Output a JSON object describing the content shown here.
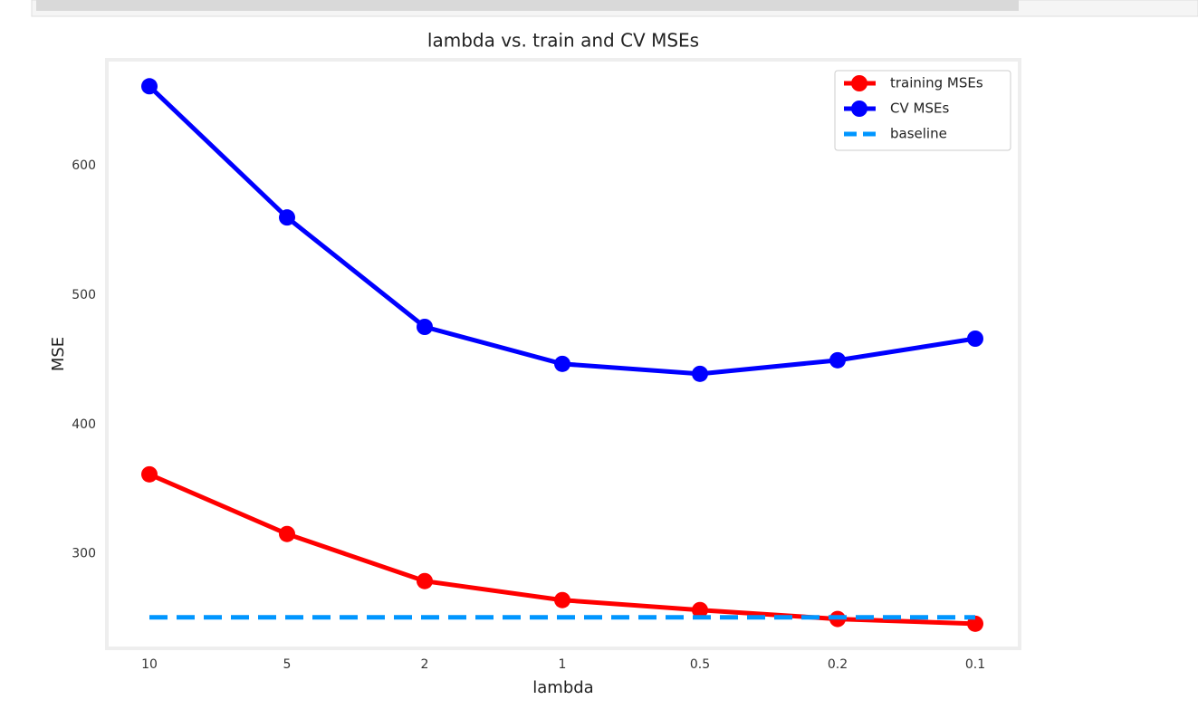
{
  "chart_data": {
    "type": "line",
    "title": "lambda vs. train and CV MSEs",
    "x_label": "lambda",
    "y_label": "MSE",
    "categories": [
      "10",
      "5",
      "2",
      "1",
      "0.5",
      "0.2",
      "0.1"
    ],
    "series": [
      {
        "name": "training MSEs",
        "color": "#ff0000",
        "marker": true,
        "dashed": false,
        "values": [
          361.5,
          315.4,
          279,
          264.3,
          256.6,
          249.7,
          246
        ]
      },
      {
        "name": "CV MSEs",
        "color": "#0000ff",
        "marker": true,
        "dashed": false,
        "values": [
          661.5,
          560.1,
          475.5,
          446.9,
          439.2,
          449.7,
          466.4
        ]
      },
      {
        "name": "baseline",
        "color": "#0096ff",
        "marker": false,
        "dashed": true,
        "values": [
          251,
          251,
          251,
          251,
          251,
          251,
          251
        ]
      }
    ],
    "ylim": [
      227,
      682
    ],
    "yticks": [
      300,
      400,
      500,
      600
    ],
    "grid": false,
    "legend": "upper right"
  }
}
